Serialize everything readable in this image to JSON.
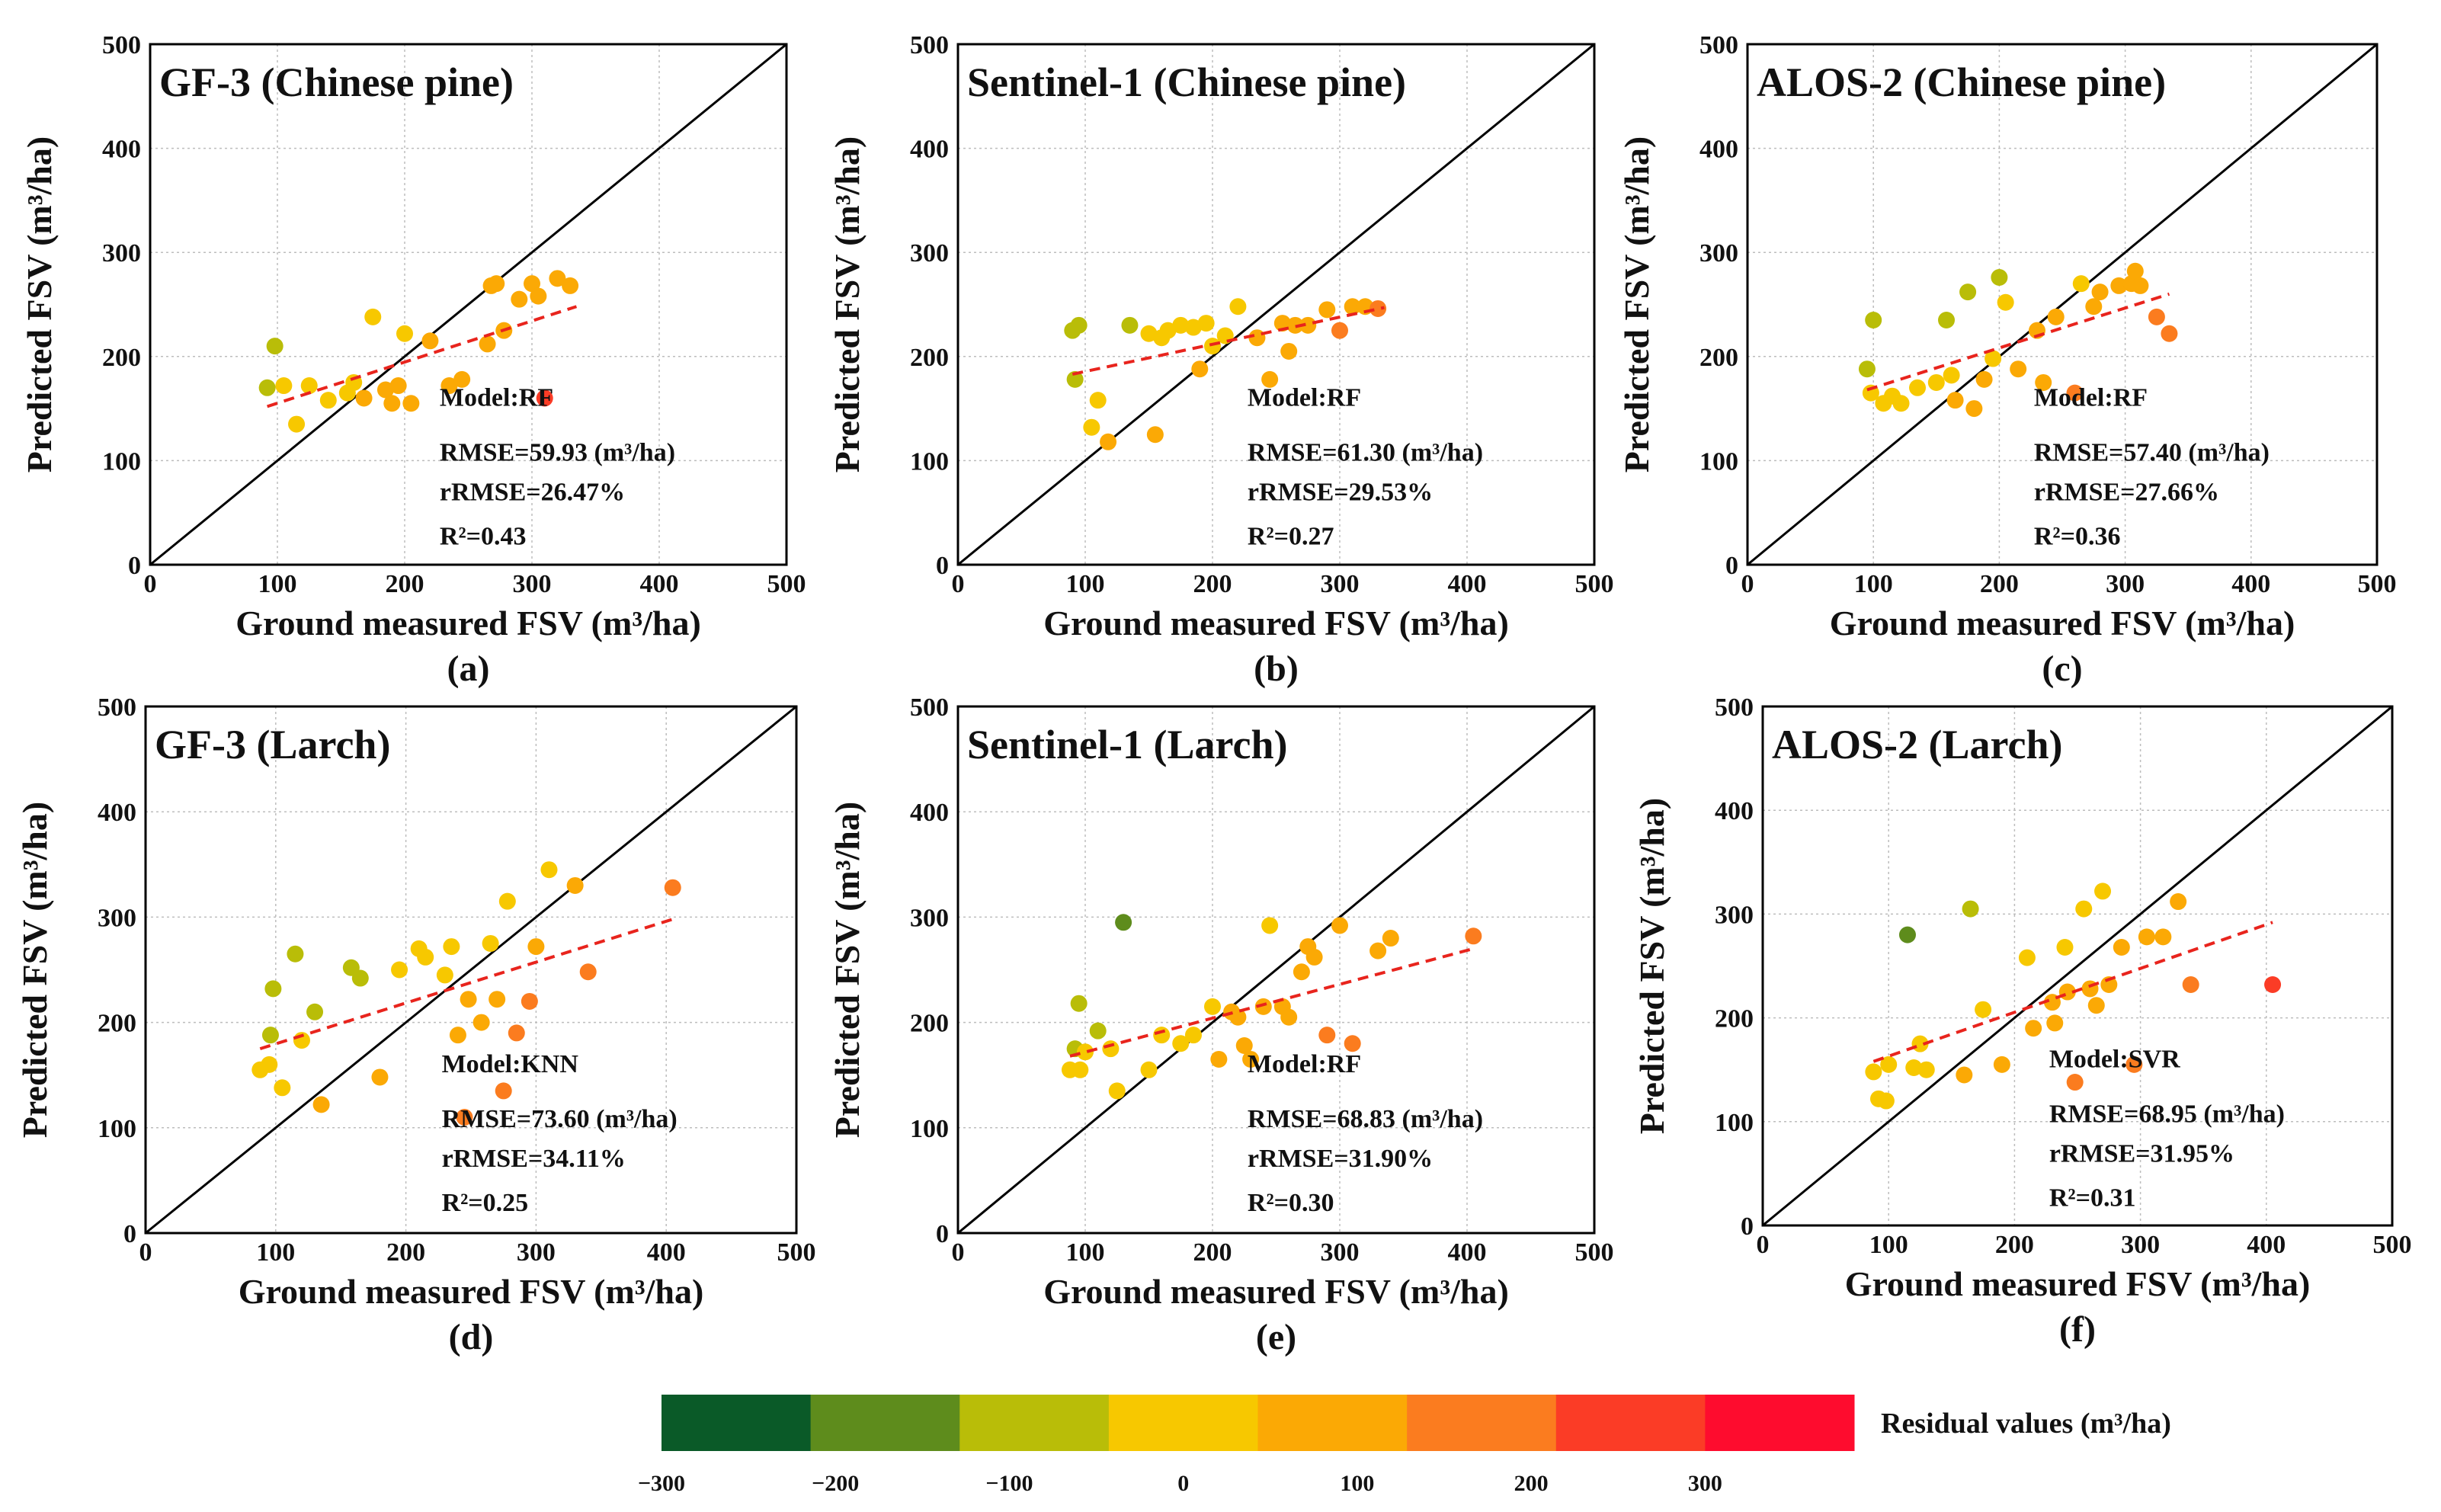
{
  "chart_data": [
    {
      "type": "scatter",
      "panel_label": "(a)",
      "title": "GF-3 (Chinese pine)",
      "xlabel": "Ground measured FSV (m³/ha)",
      "ylabel": "Predicted FSV (m³/ha)",
      "xlim": [
        0,
        500
      ],
      "ylim": [
        0,
        500
      ],
      "xticks": [
        "0",
        "100",
        "200",
        "300",
        "400",
        "500"
      ],
      "yticks": [
        "0",
        "100",
        "200",
        "300",
        "400",
        "500"
      ],
      "model": "Model:RF",
      "rmse": "RMSE=59.93 (m³/ha)",
      "rrmse": "rRMSE=26.47%",
      "r2": "R²=0.43",
      "fit_line": [
        [
          92,
          152
        ],
        [
          335,
          248
        ]
      ],
      "points": [
        [
          92,
          170
        ],
        [
          98,
          210
        ],
        [
          105,
          172
        ],
        [
          115,
          135
        ],
        [
          125,
          172
        ],
        [
          140,
          158
        ],
        [
          155,
          165
        ],
        [
          160,
          175
        ],
        [
          168,
          160
        ],
        [
          175,
          238
        ],
        [
          185,
          168
        ],
        [
          190,
          155
        ],
        [
          195,
          172
        ],
        [
          200,
          222
        ],
        [
          205,
          155
        ],
        [
          220,
          215
        ],
        [
          235,
          172
        ],
        [
          245,
          178
        ],
        [
          265,
          212
        ],
        [
          268,
          268
        ],
        [
          272,
          270
        ],
        [
          278,
          225
        ],
        [
          290,
          255
        ],
        [
          300,
          270
        ],
        [
          305,
          258
        ],
        [
          310,
          160
        ],
        [
          320,
          275
        ],
        [
          330,
          268
        ]
      ]
    },
    {
      "type": "scatter",
      "panel_label": "(b)",
      "title": "Sentinel-1 (Chinese pine)",
      "xlabel": "Ground measured FSV (m³/ha)",
      "ylabel": "Predicted FSV (m³/ha)",
      "xlim": [
        0,
        500
      ],
      "ylim": [
        0,
        500
      ],
      "xticks": [
        "0",
        "100",
        "200",
        "300",
        "400",
        "500"
      ],
      "yticks": [
        "0",
        "100",
        "200",
        "300",
        "400",
        "500"
      ],
      "model": "Model:RF",
      "rmse": "RMSE=61.30 (m³/ha)",
      "rrmse": "rRMSE=29.53%",
      "r2": "R²=0.27",
      "fit_line": [
        [
          90,
          183
        ],
        [
          335,
          247
        ]
      ],
      "points": [
        [
          90,
          225
        ],
        [
          92,
          178
        ],
        [
          95,
          230
        ],
        [
          105,
          132
        ],
        [
          110,
          158
        ],
        [
          118,
          118
        ],
        [
          135,
          230
        ],
        [
          150,
          222
        ],
        [
          155,
          125
        ],
        [
          160,
          218
        ],
        [
          165,
          225
        ],
        [
          175,
          230
        ],
        [
          185,
          228
        ],
        [
          190,
          188
        ],
        [
          195,
          232
        ],
        [
          200,
          210
        ],
        [
          210,
          220
        ],
        [
          220,
          248
        ],
        [
          235,
          218
        ],
        [
          245,
          178
        ],
        [
          255,
          232
        ],
        [
          260,
          205
        ],
        [
          265,
          230
        ],
        [
          275,
          230
        ],
        [
          290,
          245
        ],
        [
          300,
          225
        ],
        [
          310,
          248
        ],
        [
          320,
          248
        ],
        [
          330,
          246
        ]
      ]
    },
    {
      "type": "scatter",
      "panel_label": "(c)",
      "title": "ALOS-2 (Chinese pine)",
      "xlabel": "Ground measured FSV (m³/ha)",
      "ylabel": "Predicted FSV (m³/ha)",
      "xlim": [
        0,
        500
      ],
      "ylim": [
        0,
        500
      ],
      "xticks": [
        "0",
        "100",
        "200",
        "300",
        "400",
        "500"
      ],
      "yticks": [
        "0",
        "100",
        "200",
        "300",
        "400",
        "500"
      ],
      "model": "Model:RF",
      "rmse": "RMSE=57.40 (m³/ha)",
      "rrmse": "rRMSE=27.66%",
      "r2": "R²=0.36",
      "fit_line": [
        [
          95,
          168
        ],
        [
          335,
          260
        ]
      ],
      "points": [
        [
          95,
          188
        ],
        [
          98,
          165
        ],
        [
          100,
          235
        ],
        [
          108,
          155
        ],
        [
          115,
          162
        ],
        [
          122,
          155
        ],
        [
          135,
          170
        ],
        [
          150,
          175
        ],
        [
          158,
          235
        ],
        [
          162,
          182
        ],
        [
          165,
          158
        ],
        [
          175,
          262
        ],
        [
          180,
          150
        ],
        [
          188,
          178
        ],
        [
          195,
          198
        ],
        [
          200,
          276
        ],
        [
          205,
          252
        ],
        [
          215,
          188
        ],
        [
          230,
          225
        ],
        [
          235,
          175
        ],
        [
          245,
          238
        ],
        [
          260,
          165
        ],
        [
          265,
          270
        ],
        [
          275,
          248
        ],
        [
          280,
          262
        ],
        [
          295,
          268
        ],
        [
          305,
          270
        ],
        [
          308,
          282
        ],
        [
          312,
          268
        ],
        [
          325,
          238
        ],
        [
          335,
          222
        ]
      ]
    },
    {
      "type": "scatter",
      "panel_label": "(d)",
      "title": "GF-3 (Larch)",
      "xlabel": "Ground measured FSV (m³/ha)",
      "ylabel": "Predicted FSV (m³/ha)",
      "xlim": [
        0,
        500
      ],
      "ylim": [
        0,
        500
      ],
      "xticks": [
        "0",
        "100",
        "200",
        "300",
        "400",
        "500"
      ],
      "yticks": [
        "0",
        "100",
        "200",
        "300",
        "400",
        "500"
      ],
      "model": "Model:KNN",
      "rmse": "RMSE=73.60 (m³/ha)",
      "rrmse": "rRMSE=34.11%",
      "r2": "R²=0.25",
      "fit_line": [
        [
          88,
          175
        ],
        [
          405,
          298
        ]
      ],
      "points": [
        [
          88,
          155
        ],
        [
          95,
          160
        ],
        [
          96,
          188
        ],
        [
          98,
          232
        ],
        [
          105,
          138
        ],
        [
          115,
          265
        ],
        [
          120,
          183
        ],
        [
          130,
          210
        ],
        [
          135,
          122
        ],
        [
          158,
          252
        ],
        [
          165,
          242
        ],
        [
          180,
          148
        ],
        [
          195,
          250
        ],
        [
          210,
          270
        ],
        [
          215,
          262
        ],
        [
          230,
          245
        ],
        [
          235,
          272
        ],
        [
          240,
          188
        ],
        [
          245,
          110
        ],
        [
          248,
          222
        ],
        [
          258,
          200
        ],
        [
          265,
          275
        ],
        [
          270,
          222
        ],
        [
          275,
          135
        ],
        [
          278,
          315
        ],
        [
          285,
          190
        ],
        [
          295,
          220
        ],
        [
          300,
          272
        ],
        [
          310,
          345
        ],
        [
          330,
          330
        ],
        [
          340,
          248
        ],
        [
          405,
          328
        ]
      ]
    },
    {
      "type": "scatter",
      "panel_label": "(e)",
      "title": "Sentinel-1 (Larch)",
      "xlabel": "Ground measured FSV (m³/ha)",
      "ylabel": "Predicted FSV (m³/ha)",
      "xlim": [
        0,
        500
      ],
      "ylim": [
        0,
        500
      ],
      "xticks": [
        "0",
        "100",
        "200",
        "300",
        "400",
        "500"
      ],
      "yticks": [
        "0",
        "100",
        "200",
        "300",
        "400",
        "500"
      ],
      "model": "Model:RF",
      "rmse": "RMSE=68.83 (m³/ha)",
      "rrmse": "rRMSE=31.90%",
      "r2": "R²=0.30",
      "fit_line": [
        [
          88,
          168
        ],
        [
          405,
          270
        ]
      ],
      "points": [
        [
          88,
          155
        ],
        [
          92,
          175
        ],
        [
          95,
          218
        ],
        [
          96,
          155
        ],
        [
          100,
          172
        ],
        [
          110,
          192
        ],
        [
          120,
          175
        ],
        [
          125,
          135
        ],
        [
          130,
          295
        ],
        [
          150,
          155
        ],
        [
          160,
          188
        ],
        [
          175,
          180
        ],
        [
          185,
          188
        ],
        [
          200,
          215
        ],
        [
          205,
          165
        ],
        [
          215,
          210
        ],
        [
          220,
          205
        ],
        [
          225,
          178
        ],
        [
          230,
          165
        ],
        [
          240,
          215
        ],
        [
          245,
          292
        ],
        [
          255,
          215
        ],
        [
          260,
          205
        ],
        [
          270,
          248
        ],
        [
          275,
          272
        ],
        [
          280,
          262
        ],
        [
          290,
          188
        ],
        [
          300,
          292
        ],
        [
          310,
          180
        ],
        [
          330,
          268
        ],
        [
          340,
          280
        ],
        [
          405,
          282
        ]
      ]
    },
    {
      "type": "scatter",
      "panel_label": "(f)",
      "title": "ALOS-2 (Larch)",
      "xlabel": "Ground measured FSV (m³/ha)",
      "ylabel": "Predicted FSV (m³/ha)",
      "xlim": [
        0,
        500
      ],
      "ylim": [
        0,
        500
      ],
      "xticks": [
        "0",
        "100",
        "200",
        "300",
        "400",
        "500"
      ],
      "yticks": [
        "0",
        "100",
        "200",
        "300",
        "400",
        "500"
      ],
      "model": "Model:SVR",
      "rmse": "RMSE=68.95 (m³/ha)",
      "rrmse": "rRMSE=31.95%",
      "r2": "R²=0.31",
      "fit_line": [
        [
          88,
          158
        ],
        [
          405,
          292
        ]
      ],
      "points": [
        [
          88,
          148
        ],
        [
          92,
          122
        ],
        [
          98,
          120
        ],
        [
          100,
          155
        ],
        [
          115,
          280
        ],
        [
          120,
          152
        ],
        [
          125,
          175
        ],
        [
          130,
          150
        ],
        [
          160,
          145
        ],
        [
          165,
          305
        ],
        [
          175,
          208
        ],
        [
          190,
          155
        ],
        [
          210,
          258
        ],
        [
          215,
          190
        ],
        [
          230,
          215
        ],
        [
          232,
          195
        ],
        [
          240,
          268
        ],
        [
          242,
          225
        ],
        [
          248,
          138
        ],
        [
          255,
          305
        ],
        [
          260,
          228
        ],
        [
          265,
          212
        ],
        [
          270,
          322
        ],
        [
          275,
          232
        ],
        [
          285,
          268
        ],
        [
          295,
          155
        ],
        [
          305,
          278
        ],
        [
          318,
          278
        ],
        [
          330,
          312
        ],
        [
          340,
          232
        ],
        [
          405,
          232
        ]
      ]
    }
  ],
  "colorbar": {
    "title": "Residual values (m³/ha)",
    "ticks": [
      "−300",
      "−200",
      "−100",
      "0",
      "100",
      "200",
      "300"
    ],
    "range": [
      -300,
      300
    ],
    "colors": [
      "#0a5a28",
      "#5e8c1c",
      "#b9bd08",
      "#f7c800",
      "#fba905",
      "#fb7c1f",
      "#fb3c26",
      "#fe0c2e"
    ]
  }
}
